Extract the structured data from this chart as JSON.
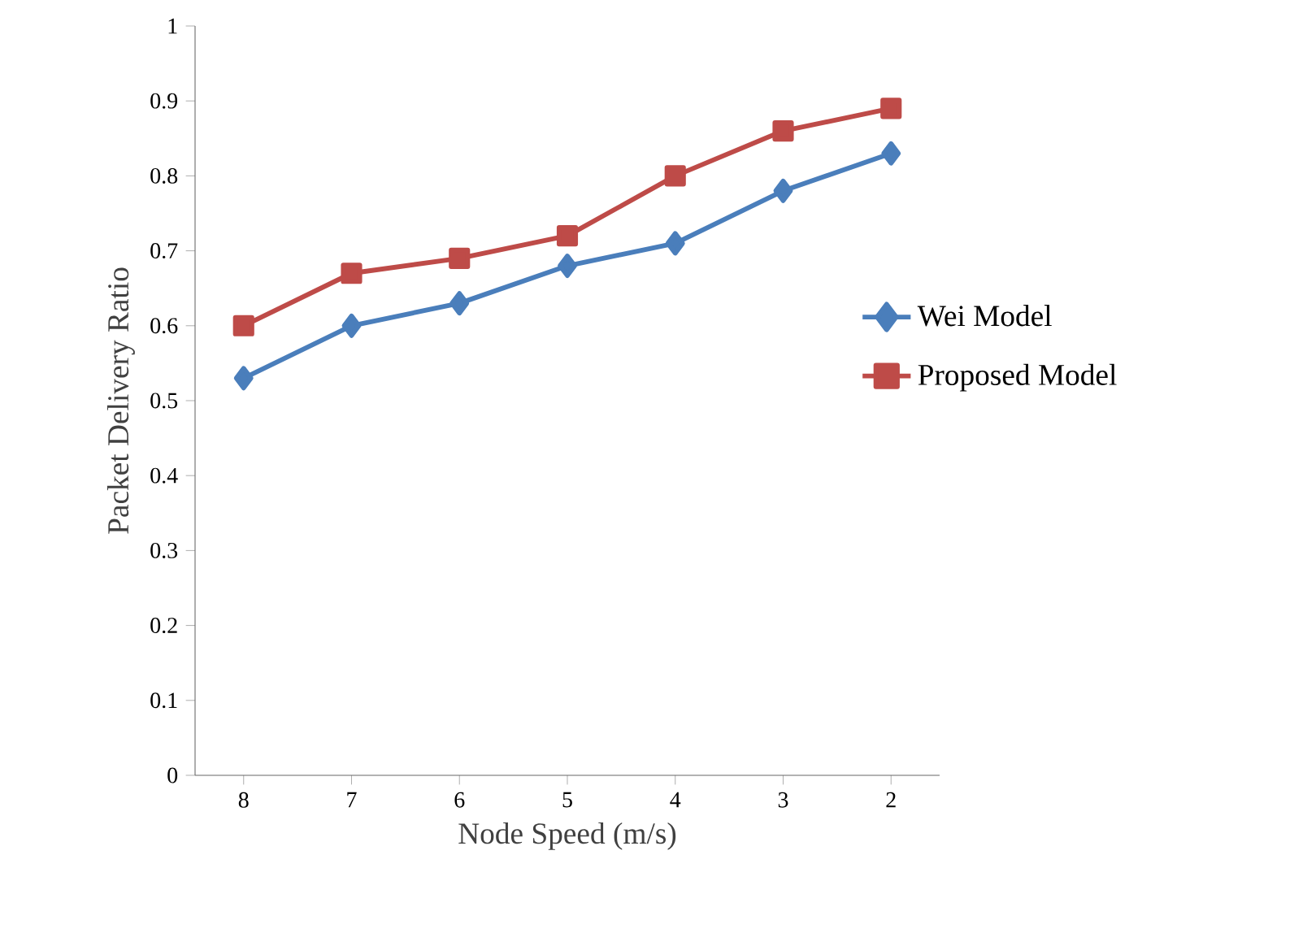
{
  "chart_data": {
    "type": "line",
    "xlabel": "Node Speed (m/s)",
    "ylabel": "Packet Delivery Ratio",
    "categories": [
      "8",
      "7",
      "6",
      "5",
      "4",
      "3",
      "2"
    ],
    "series": [
      {
        "name": "Wei Model",
        "color": "#4a7ebb",
        "marker": "diamond",
        "values": [
          0.53,
          0.6,
          0.63,
          0.68,
          0.71,
          0.78,
          0.83
        ]
      },
      {
        "name": "Proposed Model",
        "color": "#be4b48",
        "marker": "square",
        "values": [
          0.6,
          0.67,
          0.69,
          0.72,
          0.8,
          0.86,
          0.89
        ]
      }
    ],
    "ylim": [
      0,
      1
    ],
    "yticks": [
      0,
      0.1,
      0.2,
      0.3,
      0.4,
      0.5,
      0.6,
      0.7,
      0.8,
      0.9,
      1
    ],
    "grid": false,
    "legend": "right",
    "line_style": "solid"
  }
}
